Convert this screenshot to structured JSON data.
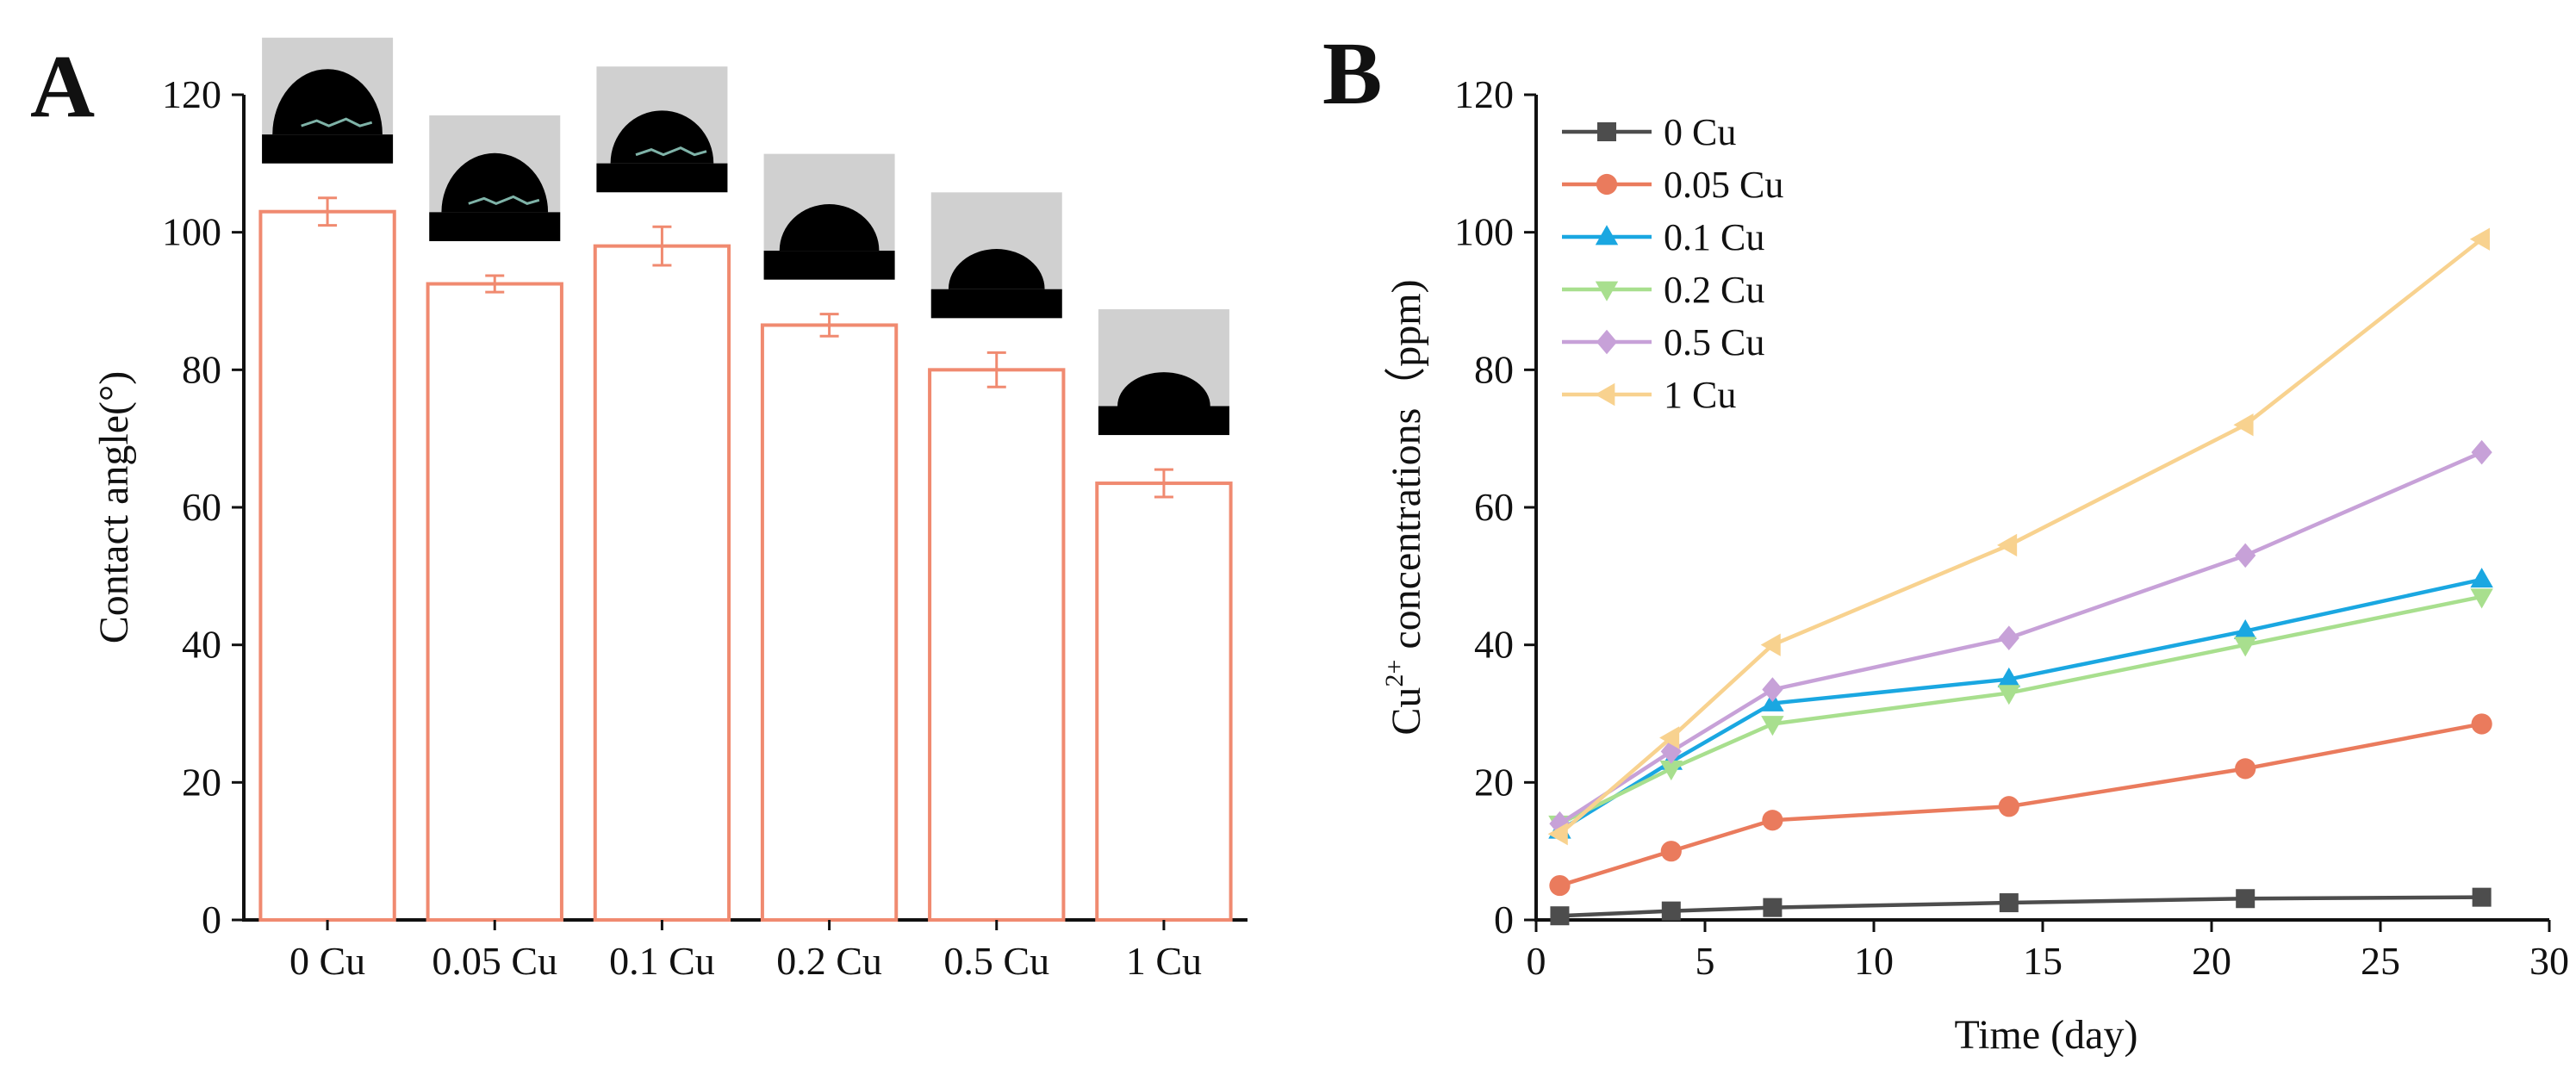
{
  "chart_data": [
    {
      "type": "bar",
      "panel_label": "A",
      "categories": [
        "0 Cu",
        "0.05 Cu",
        "0.1 Cu",
        "0.2 Cu",
        "0.5 Cu",
        "1 Cu"
      ],
      "values": [
        103,
        92.5,
        98,
        86.5,
        80,
        63.5
      ],
      "errors": [
        2,
        1.2,
        2.8,
        1.6,
        2.5,
        2
      ],
      "title": "",
      "xlabel": "",
      "ylabel": "Contact angle(°)",
      "ylim": [
        0,
        120
      ],
      "yticks": [
        0,
        20,
        40,
        60,
        80,
        100,
        120
      ],
      "bar_color": "#f08a70",
      "grid": false,
      "annotations": "contact-angle droplet photo above each bar",
      "droplet_fill": "#000000",
      "droplet_bg": "#d0d0d0",
      "droplet_highlight": "#7fb3a8"
    },
    {
      "type": "line",
      "panel_label": "B",
      "x": [
        0.7,
        4,
        7,
        14,
        21,
        28
      ],
      "series": [
        {
          "name": "0 Cu",
          "values": [
            0.6,
            1.3,
            1.8,
            2.5,
            3.1,
            3.3
          ],
          "color": "#4d4d4d",
          "marker": "square"
        },
        {
          "name": "0.05 Cu",
          "values": [
            5,
            10,
            14.5,
            16.5,
            22,
            28.5
          ],
          "color": "#ea7b5d",
          "marker": "circle"
        },
        {
          "name": "0.1 Cu",
          "values": [
            13,
            23,
            31.5,
            35,
            42,
            49.5
          ],
          "color": "#1aa7e1",
          "marker": "triangle-up"
        },
        {
          "name": "0.2 Cu",
          "values": [
            14,
            22,
            28.5,
            33,
            40,
            47
          ],
          "color": "#a8df8e",
          "marker": "triangle-down"
        },
        {
          "name": "0.5 Cu",
          "values": [
            14,
            24.5,
            33.5,
            41,
            53,
            68
          ],
          "color": "#c7a1d8",
          "marker": "diamond"
        },
        {
          "name": "1 Cu",
          "values": [
            12.5,
            26.5,
            40,
            54.5,
            72,
            99
          ],
          "color": "#f8d28f",
          "marker": "triangle-left"
        }
      ],
      "title": "",
      "xlabel": "Time (day)",
      "ylabel_base": "Cu",
      "ylabel_sup": "2+",
      "ylabel_rest": " concentrations（ppm)",
      "xlim": [
        0,
        30
      ],
      "ylim": [
        0,
        120
      ],
      "xticks": [
        0,
        5,
        10,
        15,
        20,
        25,
        30
      ],
      "yticks": [
        0,
        20,
        40,
        60,
        80,
        100,
        120
      ],
      "legend_position": "top-left",
      "grid": false
    }
  ]
}
